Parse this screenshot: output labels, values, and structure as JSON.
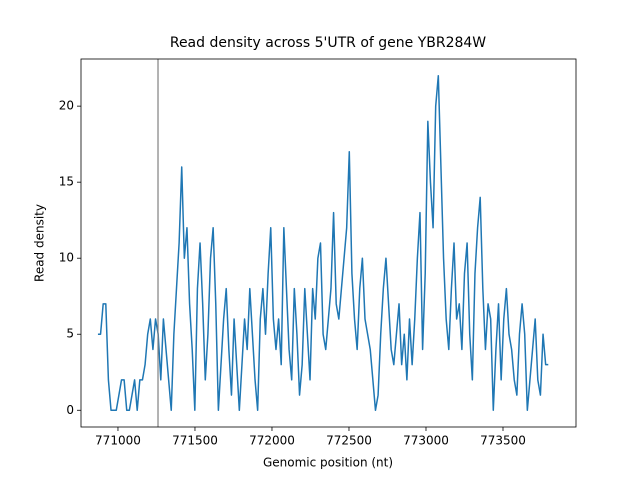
{
  "chart_data": {
    "type": "line",
    "title": "Read density across 5'UTR of gene YBR284W",
    "xlabel": "Genomic position (nt)",
    "ylabel": "Read density",
    "xlim": [
      770760,
      773974
    ],
    "ylim": [
      -1.1,
      23.1
    ],
    "xticks": [
      771000,
      771500,
      772000,
      772500,
      773000,
      773500
    ],
    "yticks": [
      0,
      5,
      10,
      15,
      20
    ],
    "grid": false,
    "vline_x": 771260,
    "vline_color": "#808080",
    "series": [
      {
        "color": "#1f77b4",
        "x": [
          770870,
          770887,
          770904,
          770921,
          770938,
          770955,
          770972,
          770989,
          771006,
          771023,
          771040,
          771057,
          771074,
          771091,
          771108,
          771125,
          771142,
          771159,
          771176,
          771193,
          771210,
          771227,
          771244,
          771261,
          771278,
          771295,
          771312,
          771329,
          771346,
          771363,
          771380,
          771397,
          771414,
          771431,
          771448,
          771465,
          771482,
          771499,
          771516,
          771533,
          771550,
          771567,
          771584,
          771601,
          771618,
          771635,
          771652,
          771669,
          771686,
          771703,
          771720,
          771737,
          771754,
          771771,
          771788,
          771805,
          771822,
          771839,
          771856,
          771873,
          771890,
          771907,
          771924,
          771941,
          771958,
          771975,
          771992,
          772009,
          772026,
          772043,
          772060,
          772077,
          772094,
          772111,
          772128,
          772145,
          772162,
          772179,
          772196,
          772213,
          772230,
          772247,
          772264,
          772281,
          772298,
          772315,
          772332,
          772349,
          772366,
          772383,
          772400,
          772417,
          772434,
          772451,
          772468,
          772485,
          772502,
          772519,
          772536,
          772553,
          772570,
          772587,
          772604,
          772621,
          772638,
          772655,
          772672,
          772689,
          772706,
          772723,
          772740,
          772757,
          772774,
          772791,
          772808,
          772825,
          772842,
          772859,
          772876,
          772893,
          772910,
          772927,
          772944,
          772961,
          772978,
          772995,
          773012,
          773029,
          773046,
          773063,
          773080,
          773097,
          773114,
          773131,
          773148,
          773165,
          773182,
          773199,
          773216,
          773233,
          773250,
          773267,
          773284,
          773301,
          773318,
          773335,
          773352,
          773369,
          773386,
          773403,
          773420,
          773437,
          773454,
          773471,
          773488,
          773505,
          773522,
          773539,
          773556,
          773573,
          773590,
          773607,
          773624,
          773641,
          773658,
          773675,
          773692,
          773709,
          773726,
          773743,
          773760,
          773777,
          773794
        ],
        "values": [
          5,
          5,
          7,
          7,
          2,
          0,
          0,
          0,
          1,
          2,
          2,
          0,
          0,
          1,
          2,
          0,
          2,
          2,
          3,
          5,
          6,
          4,
          6,
          5,
          2,
          6,
          4,
          2,
          0,
          5,
          8,
          11,
          16,
          10,
          12,
          7,
          4,
          0,
          8,
          11,
          7,
          2,
          5,
          10,
          12,
          7,
          0,
          3,
          6,
          8,
          4,
          1,
          6,
          3,
          0,
          3,
          6,
          4,
          8,
          5,
          2,
          0,
          6,
          8,
          5,
          9,
          12,
          6,
          4,
          6,
          3,
          12,
          8,
          4,
          2,
          8,
          5,
          1,
          3,
          8,
          5,
          2,
          8,
          6,
          10,
          11,
          5,
          4,
          6,
          8,
          13,
          7,
          6,
          8,
          10,
          12,
          17,
          9,
          6,
          4,
          8,
          10,
          6,
          5,
          4,
          2,
          0,
          1,
          5,
          8,
          10,
          7,
          4,
          3,
          5,
          7,
          3,
          5,
          2,
          6,
          3,
          6,
          10,
          13,
          4,
          9,
          19,
          15,
          12,
          20,
          22,
          16,
          10,
          6,
          4,
          8,
          11,
          6,
          7,
          4,
          9,
          11,
          5,
          2,
          9,
          12,
          14,
          8,
          4,
          7,
          6,
          0,
          4,
          7,
          2,
          6,
          8,
          5,
          4,
          2,
          1,
          5,
          7,
          5,
          0,
          2,
          4,
          6,
          2,
          1,
          5,
          3,
          3
        ]
      }
    ]
  }
}
